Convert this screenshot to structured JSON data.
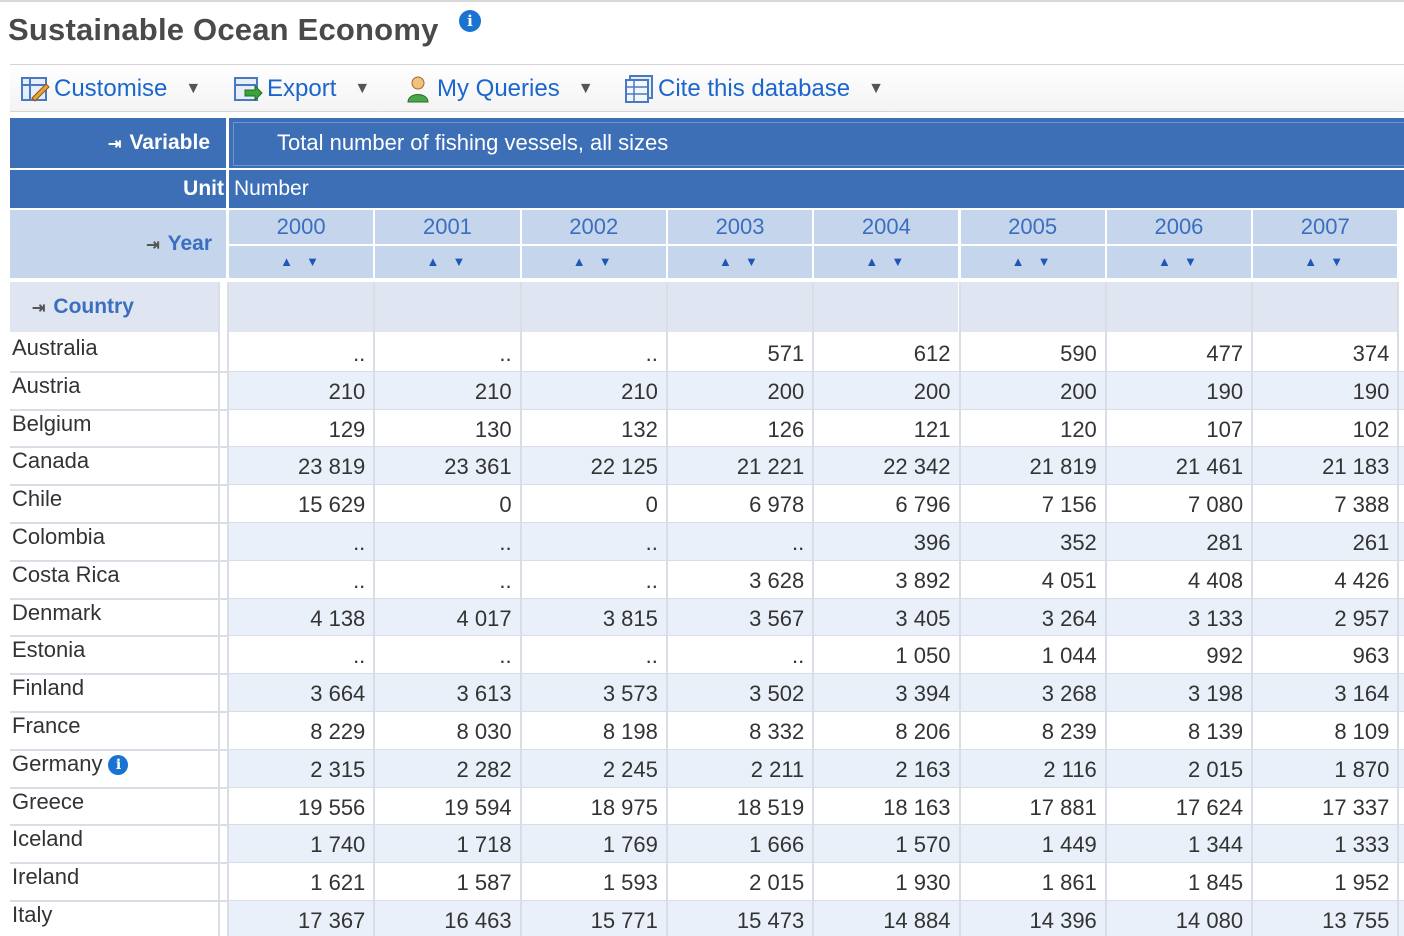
{
  "page": {
    "title": "Sustainable Ocean Economy",
    "title_info_icon": "info-icon"
  },
  "toolbar": {
    "customise": "Customise",
    "export": "Export",
    "my_queries": "My Queries",
    "cite": "Cite this database"
  },
  "table": {
    "variable_label": "Variable",
    "variable_value": "Total number of fishing vessels, all sizes",
    "unit_label": "Unit",
    "unit_value": "Number",
    "year_label": "Year",
    "country_label": "Country",
    "years": [
      "2000",
      "2001",
      "2002",
      "2003",
      "2004",
      "2005",
      "2006",
      "2007"
    ],
    "rows": [
      {
        "country": "Australia",
        "values": [
          "..",
          "..",
          "..",
          "571",
          "612",
          "590",
          "477",
          "374"
        ]
      },
      {
        "country": "Austria",
        "values": [
          "210",
          "210",
          "210",
          "200",
          "200",
          "200",
          "190",
          "190"
        ]
      },
      {
        "country": "Belgium",
        "values": [
          "129",
          "130",
          "132",
          "126",
          "121",
          "120",
          "107",
          "102"
        ]
      },
      {
        "country": "Canada",
        "values": [
          "23 819",
          "23 361",
          "22 125",
          "21 221",
          "22 342",
          "21 819",
          "21 461",
          "21 183"
        ]
      },
      {
        "country": "Chile",
        "values": [
          "15 629",
          "0",
          "0",
          "6 978",
          "6 796",
          "7 156",
          "7 080",
          "7 388"
        ]
      },
      {
        "country": "Colombia",
        "values": [
          "..",
          "..",
          "..",
          "..",
          "396",
          "352",
          "281",
          "261"
        ]
      },
      {
        "country": "Costa Rica",
        "values": [
          "..",
          "..",
          "..",
          "3 628",
          "3 892",
          "4 051",
          "4 408",
          "4 426"
        ]
      },
      {
        "country": "Denmark",
        "values": [
          "4 138",
          "4 017",
          "3 815",
          "3 567",
          "3 405",
          "3 264",
          "3 133",
          "2 957"
        ]
      },
      {
        "country": "Estonia",
        "values": [
          "..",
          "..",
          "..",
          "..",
          "1 050",
          "1 044",
          "992",
          "963"
        ]
      },
      {
        "country": "Finland",
        "values": [
          "3 664",
          "3 613",
          "3 573",
          "3 502",
          "3 394",
          "3 268",
          "3 198",
          "3 164"
        ]
      },
      {
        "country": "France",
        "values": [
          "8 229",
          "8 030",
          "8 198",
          "8 332",
          "8 206",
          "8 239",
          "8 139",
          "8 109"
        ]
      },
      {
        "country": "Germany",
        "values": [
          "2 315",
          "2 282",
          "2 245",
          "2 211",
          "2 163",
          "2 116",
          "2 015",
          "1 870"
        ],
        "info": true
      },
      {
        "country": "Greece",
        "values": [
          "19 556",
          "19 594",
          "18 975",
          "18 519",
          "18 163",
          "17 881",
          "17 624",
          "17 337"
        ]
      },
      {
        "country": "Iceland",
        "values": [
          "1 740",
          "1 718",
          "1 769",
          "1 666",
          "1 570",
          "1 449",
          "1 344",
          "1 333"
        ]
      },
      {
        "country": "Ireland",
        "values": [
          "1 621",
          "1 587",
          "1 593",
          "2 015",
          "1 930",
          "1 861",
          "1 845",
          "1 952"
        ]
      },
      {
        "country": "Italy",
        "values": [
          "17 367",
          "16 463",
          "15 771",
          "15 473",
          "14 884",
          "14 396",
          "14 080",
          "13 755"
        ]
      }
    ]
  },
  "colors": {
    "header_blue": "#3d6fb6",
    "header_light": "#c5d6ec",
    "row_alt": "#e9f0f9",
    "link_blue": "#1a66cc"
  }
}
